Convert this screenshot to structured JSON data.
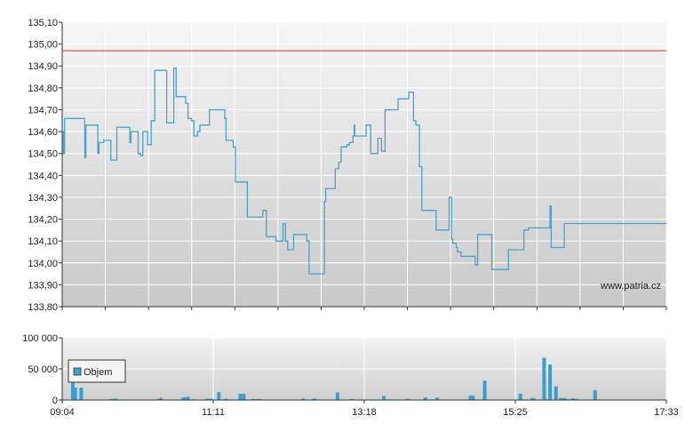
{
  "chart_data": [
    {
      "type": "line",
      "name": "price",
      "title": "",
      "xlabel": "",
      "ylabel": "",
      "ylim": [
        133.8,
        135.1
      ],
      "y_ticks": [
        "135,10",
        "135,00",
        "134,90",
        "134,80",
        "134,70",
        "134,60",
        "134,50",
        "134,40",
        "134,30",
        "134,20",
        "134,10",
        "134,00",
        "133,90",
        "133,80"
      ],
      "reference_line": 134.97,
      "reference_color": "#e05a4a",
      "line_color": "#4aa3c8",
      "grid": true,
      "watermark": "www.patria.cz",
      "x_minutes_range": [
        544,
        1053
      ],
      "series": [
        {
          "x_minutes": [
            544,
            545,
            546,
            550,
            563,
            564,
            574,
            575,
            578,
            579,
            584,
            585,
            590,
            601,
            602,
            608,
            610,
            612,
            616,
            619,
            620,
            622,
            632,
            633,
            638,
            640,
            648,
            650,
            653,
            655,
            658,
            660,
            667,
            668,
            668.5,
            681,
            682,
            684,
            688,
            690,
            692,
            700,
            713,
            716,
            724,
            729,
            730,
            731,
            732,
            734,
            739,
            750,
            752,
            755,
            765,
            766,
            767,
            774,
            777,
            778,
            779,
            781,
            784,
            786,
            789,
            790,
            790.5,
            800,
            801,
            804,
            810,
            813,
            816,
            824,
            827,
            836,
            840,
            842,
            845,
            847,
            859,
            870,
            872,
            873,
            876,
            877,
            880,
            883,
            892,
            894,
            906,
            907,
            920,
            932,
            933,
            936,
            937,
            939,
            950,
            955,
            956,
            958,
            967,
            968,
            971,
            973,
            974,
            976,
            977,
            978,
            979,
            982,
            984,
            985,
            996,
            998,
            1001,
            1003,
            1014,
            1015,
            1018,
            1020,
            1022,
            1023,
            1038,
            1039,
            1041,
            1051,
            1053
          ],
          "y": [
            134.6,
            134.5,
            134.66,
            134.66,
            134.48,
            134.63,
            134.5,
            134.55,
            134.55,
            134.56,
            134.56,
            134.47,
            134.62,
            134.55,
            134.6,
            134.5,
            134.49,
            134.6,
            134.54,
            134.65,
            134.65,
            134.88,
            134.64,
            134.64,
            134.89,
            134.76,
            134.73,
            134.66,
            134.65,
            134.58,
            134.6,
            134.63,
            134.63,
            134.7,
            134.7,
            134.66,
            134.56,
            134.56,
            134.53,
            134.37,
            134.37,
            134.21,
            134.24,
            134.12,
            134.1,
            134.1,
            134.18,
            134.18,
            134.1,
            134.06,
            134.13,
            134.1,
            133.95,
            133.95,
            134.28,
            134.34,
            134.34,
            134.43,
            134.46,
            134.46,
            134.53,
            134.53,
            134.54,
            134.55,
            134.58,
            134.63,
            134.58,
            134.63,
            134.63,
            134.5,
            134.57,
            134.51,
            134.7,
            134.7,
            134.75,
            134.78,
            134.65,
            134.63,
            134.44,
            134.24,
            134.15,
            134.3,
            134.11,
            134.09,
            134.07,
            134.05,
            134.03,
            134.03,
            133.99,
            134.13,
            133.97,
            133.97,
            134.06,
            134.06,
            134.15,
            134.15,
            134.16,
            134.16,
            134.16,
            134.26,
            134.07,
            134.07,
            134.18,
            134.18,
            134.18,
            134.18,
            134.18,
            134.18,
            134.18,
            134.18,
            134.18,
            134.18,
            134.18,
            134.18,
            134.18,
            134.18,
            134.18,
            134.18,
            134.18,
            134.18,
            134.18,
            134.18,
            134.18,
            134.18,
            134.18,
            134.18,
            134.18,
            134.18,
            134.18
          ]
        }
      ]
    },
    {
      "type": "bar",
      "name": "volume",
      "ylim": [
        0,
        100000
      ],
      "y_ticks": [
        "100 000",
        "50 000",
        "0"
      ],
      "bar_color": "#3a9fd0",
      "legend": {
        "label": "Objem",
        "placement": "top-left"
      },
      "series": [
        {
          "name": "Objem",
          "x_minutes": [
            553,
            555,
            560,
            586,
            589,
            625,
            627,
            646,
            648,
            650,
            654,
            666,
            669,
            676,
            682,
            694,
            697,
            705,
            709,
            710,
            711,
            747,
            756,
            757,
            776,
            788,
            790,
            815,
            820,
            835,
            850,
            860,
            888,
            889,
            890,
            891,
            900,
            930,
            931,
            940,
            941,
            950,
            955,
            960,
            964,
            967,
            970,
            974,
            977,
            993
          ],
          "values": [
            48000,
            20000,
            20000,
            1500,
            2500,
            1500,
            3500,
            4000,
            4500,
            5000,
            1200,
            2000,
            2000,
            12500,
            2000,
            10000,
            10000,
            1500,
            1500,
            1500,
            1200,
            2500,
            2500,
            2000,
            12000,
            1500,
            1000,
            6500,
            1000,
            1800,
            4000,
            4000,
            7000,
            7000,
            7000,
            1200,
            31000,
            10000,
            1000,
            3000,
            3000,
            68000,
            57000,
            22000,
            3000,
            3000,
            1200,
            3000,
            2000,
            16000
          ]
        }
      ],
      "x_ticks": [
        "09:04",
        "11:11",
        "13:18",
        "15:25",
        "17:33"
      ]
    }
  ]
}
